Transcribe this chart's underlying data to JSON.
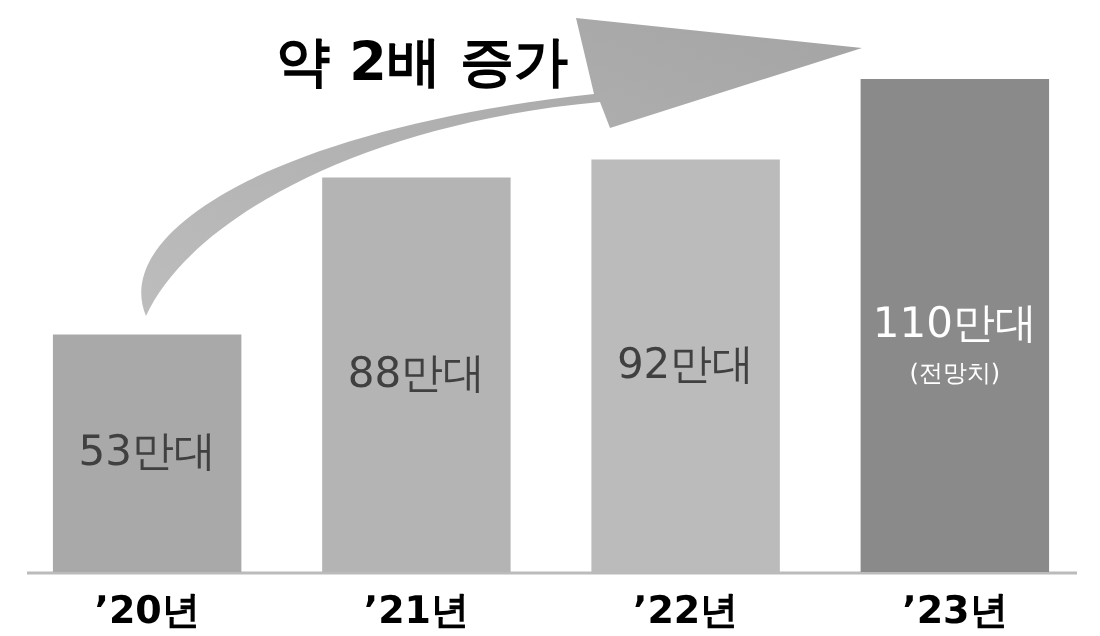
{
  "chart_data": {
    "type": "bar",
    "categories": [
      "’20년",
      "’21년",
      "’22년",
      "’23년"
    ],
    "values": [
      53,
      88,
      92,
      110
    ],
    "value_labels": [
      "53만대",
      "88만대",
      "92만대",
      "110만대"
    ],
    "colors": [
      "#a9a9a9",
      "#b4b4b4",
      "#bbbbbb",
      "#8a8a8a"
    ],
    "annotations": [
      "약 2배 증가",
      "(전망치)"
    ]
  }
}
